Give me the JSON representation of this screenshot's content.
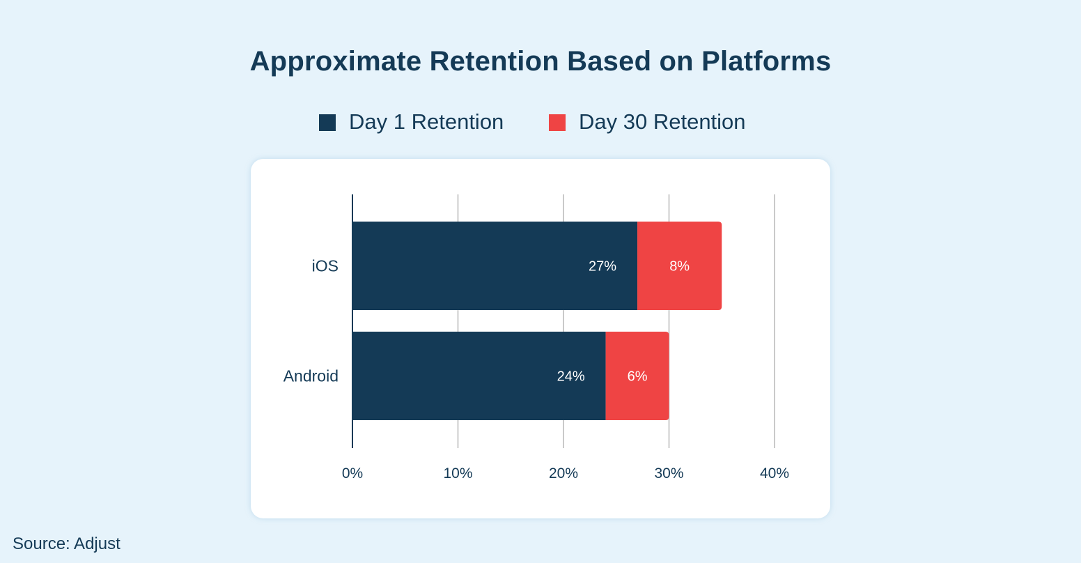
{
  "chart_data": {
    "type": "bar",
    "orientation": "horizontal",
    "stacked": true,
    "title": "Approximate Retention Based on Platforms",
    "categories": [
      "iOS",
      "Android"
    ],
    "series": [
      {
        "name": "Day 1 Retention",
        "values": [
          27,
          24
        ],
        "labels": [
          "27%",
          "24%"
        ],
        "color": "#143a56"
      },
      {
        "name": "Day 30 Retention",
        "values": [
          8,
          6
        ],
        "labels": [
          "8%",
          "6%"
        ],
        "color": "#ef4444"
      }
    ],
    "xlim": [
      0,
      40
    ],
    "xticks": [
      0,
      10,
      20,
      30,
      40
    ],
    "xtick_labels": [
      "0%",
      "10%",
      "20%",
      "30%",
      "40%"
    ],
    "xlabel": "",
    "ylabel": "",
    "grid": true,
    "legend_position": "top-center"
  },
  "source": "Source: Adjust",
  "colors": {
    "background": "#e6f3fb",
    "text": "#143a56",
    "grid": "#b8b8b8",
    "card": "#ffffff"
  }
}
